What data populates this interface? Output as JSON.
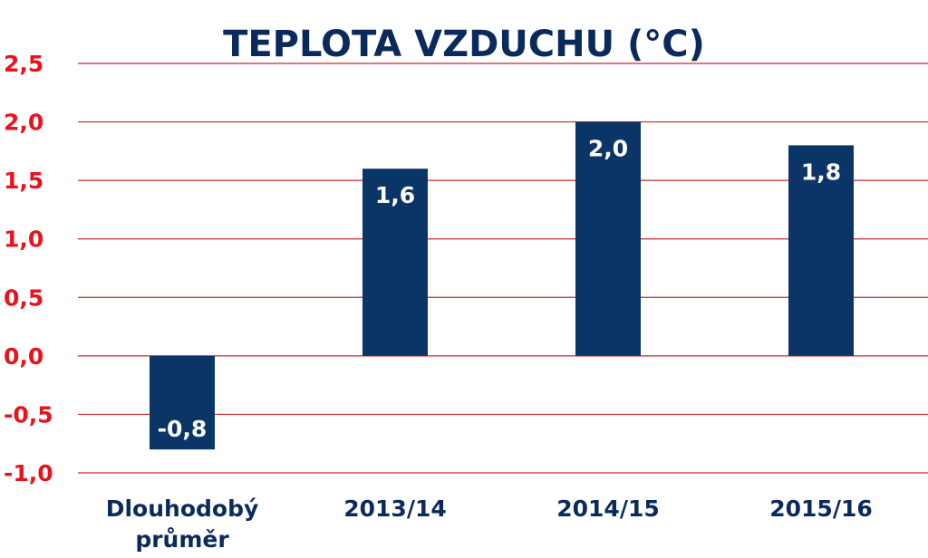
{
  "chart_data": {
    "type": "bar",
    "title": "TEPLOTA VZDUCHU (°C)",
    "categories": [
      [
        "Dlouhodobý",
        "průměr"
      ],
      [
        "2013/14"
      ],
      [
        "2014/15"
      ],
      [
        "2015/16"
      ]
    ],
    "values": [
      -0.8,
      1.6,
      2.0,
      1.8
    ],
    "data_labels": [
      "-0,8",
      "1,6",
      "2,0",
      "1,8"
    ],
    "ylim": [
      -1.0,
      2.5
    ],
    "yticks": [
      2.5,
      2.0,
      1.5,
      1.0,
      0.5,
      0.0,
      -0.5,
      -1.0
    ],
    "ytick_labels": [
      "2,5",
      "2,0",
      "1,5",
      "1,0",
      "0,5",
      "0,0",
      "-0,5",
      "-1,0"
    ],
    "grid": true,
    "legend": "none",
    "colors": {
      "bar": "#0b3566",
      "title": "#0b2a5c",
      "ytick": "#e8141c",
      "grid": "#c9272e",
      "data_label": "#ffffff"
    }
  }
}
